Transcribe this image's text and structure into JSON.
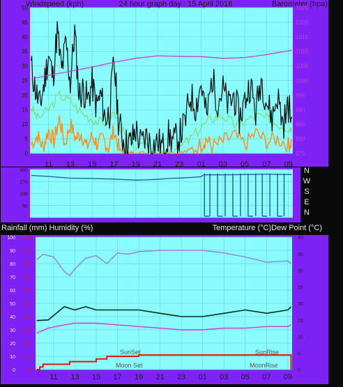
{
  "colors": {
    "panel": "#7f22f5",
    "plot": "#8afcfc",
    "grid": "#6fd6d6",
    "dark_text": "#1a1a1a",
    "wind_gust": "#0c0c0c",
    "wind_avg": "#7ddc78",
    "wind_orange": "#ff8c1a",
    "barometer": "#c940d8",
    "direction": "#1c5aa0",
    "humidity": "#9a7be6",
    "temperature": "#0c2a1a",
    "dewpoint": "#d836d0",
    "rain": "#e81010",
    "rain_axis_text": "#d42020"
  },
  "chart_data": [
    {
      "id": "wind_baro",
      "type": "line",
      "title": "24 hour graph day : 15 April 2018",
      "ylabel_left": "Windspeed (kph)",
      "ylabel_right": "Barometer (hpa)",
      "ylim_left": [
        0,
        50
      ],
      "ylim_right": [
        975,
        1025
      ],
      "y_ticks_left": [
        "0",
        "5",
        "10",
        "15",
        "20",
        "25",
        "30",
        "35",
        "40",
        "45",
        "50"
      ],
      "y_ticks_right": [
        "975",
        "980",
        "985",
        "990",
        "995",
        "1000",
        "1005",
        "1010",
        "1015",
        "1020",
        "1025"
      ],
      "x_ticks": [
        "11",
        "13",
        "15",
        "17",
        "19",
        "21",
        "23",
        "01",
        "03",
        "05",
        "07",
        "09"
      ],
      "x_hours": [
        0,
        2,
        4,
        6,
        8,
        10,
        12,
        14,
        16,
        18,
        20,
        22
      ],
      "x_range": [
        -1.7,
        22.4
      ],
      "series": [
        {
          "key": "gust",
          "x": [
            -1.6,
            -1.2,
            -0.8,
            -0.4,
            0,
            0.4,
            0.8,
            1.2,
            1.6,
            2,
            2.4,
            2.8,
            3.2,
            3.6,
            4,
            4.4,
            4.8,
            5.2,
            5.6,
            6,
            6.4,
            6.8,
            7.2,
            7.6,
            8,
            8.5,
            9,
            9.5,
            10,
            10.5,
            11,
            11.5,
            12,
            12.5,
            13,
            13.5,
            14,
            14.5,
            15,
            15.5,
            16,
            16.5,
            17,
            17.5,
            18,
            18.5,
            19,
            19.5,
            20,
            20.5,
            21,
            21.5,
            22,
            22.3
          ],
          "y": [
            30,
            22,
            16,
            24,
            34,
            26,
            42,
            28,
            38,
            24,
            42,
            20,
            22,
            18,
            24,
            16,
            20,
            12,
            14,
            32,
            12,
            5,
            3,
            4,
            8,
            3,
            6,
            2,
            4,
            2,
            6,
            4,
            6,
            10,
            20,
            16,
            24,
            12,
            26,
            18,
            22,
            16,
            20,
            12,
            18,
            24,
            14,
            26,
            18,
            12,
            20,
            10,
            16,
            12
          ]
        },
        {
          "key": "avg",
          "x": [
            -1.6,
            -1,
            0,
            1,
            2,
            3,
            4,
            5,
            6,
            7,
            8,
            10,
            12,
            13,
            14,
            15,
            16,
            17,
            18,
            19,
            20,
            21,
            22,
            22.3
          ],
          "y": [
            16,
            12,
            15,
            20,
            18,
            14,
            12,
            10,
            14,
            6,
            2,
            1,
            2,
            5,
            9,
            12,
            13,
            10,
            11,
            13,
            12,
            10,
            9,
            9
          ]
        },
        {
          "key": "orange",
          "x": [
            -1.6,
            -1,
            -0.5,
            0,
            0.5,
            1,
            1.5,
            2,
            2.5,
            3,
            3.5,
            4,
            4.5,
            5,
            5.5,
            6,
            6.5,
            7,
            7.5,
            8,
            9,
            10,
            11,
            12,
            13,
            14,
            14.5,
            15,
            16,
            17,
            18,
            19,
            20,
            21,
            22,
            22.3
          ],
          "y": [
            3,
            6,
            2,
            8,
            4,
            12,
            3,
            10,
            5,
            7,
            2,
            6,
            3,
            5,
            2,
            8,
            1,
            0,
            0,
            0,
            0,
            0,
            0,
            0,
            1,
            3,
            5,
            2,
            4,
            6,
            3,
            7,
            4,
            5,
            3,
            4
          ]
        },
        {
          "key": "barometer",
          "x": [
            -1.6,
            0,
            2,
            4,
            6,
            8,
            10,
            12,
            14,
            16,
            18,
            20,
            22,
            22.3
          ],
          "y": [
            1000.5,
            1001.8,
            1003.2,
            1004.6,
            1006.3,
            1007.6,
            1008.5,
            1008.3,
            1008.2,
            1007.6,
            1007.9,
            1008.9,
            1010.2,
            1010.5
          ]
        }
      ]
    },
    {
      "id": "direction",
      "type": "line",
      "ylabel_right": [
        "N",
        "W",
        "S",
        "E",
        "N"
      ],
      "y_ticks_left": [
        "360",
        "270",
        "180",
        "90",
        ""
      ],
      "ylim": [
        0,
        360
      ],
      "series": [
        {
          "key": "direction",
          "x": [
            -1.6,
            0,
            2,
            4,
            6,
            7,
            8,
            9,
            10,
            11,
            12,
            13,
            14,
            14.2,
            16,
            18,
            20,
            22,
            22.3
          ],
          "y": [
            315,
            308,
            295,
            292,
            288,
            284,
            280,
            282,
            286,
            292,
            296,
            300,
            305,
            320,
            320,
            322,
            324,
            322,
            322
          ]
        }
      ]
    },
    {
      "id": "humidity_temp",
      "type": "line",
      "ylabel_left": "Rainfall (mm)  Humidity (%)",
      "ylabel_right": "Temperature (°C)Dew Point (°C)",
      "y_ticks_humidity": [
        "0",
        "10",
        "20",
        "30",
        "40",
        "50",
        "60",
        "70",
        "80",
        "90",
        "100"
      ],
      "y_ticks_rain": [
        "0.0",
        "5.0",
        "10.0",
        "15.0",
        "20.0",
        "25.0",
        "30.0",
        "35.0",
        "40.0",
        "45.0",
        "50.0"
      ],
      "y_ticks_temp": [
        "0",
        "5",
        "10",
        "15",
        "20",
        "25",
        "30",
        "35",
        "40"
      ],
      "ylim_left": [
        0,
        100
      ],
      "ylim_right": [
        0,
        40
      ],
      "x_ticks": [
        "11",
        "13",
        "15",
        "17",
        "19",
        "21",
        "23",
        "01",
        "03",
        "05",
        "07",
        "09"
      ],
      "annotations": [
        "SunSet",
        "Moon Set",
        "SunRise",
        "MoonRise"
      ],
      "series": [
        {
          "key": "humidity",
          "x": [
            -1.6,
            -1,
            0,
            1,
            1.5,
            2,
            3,
            4,
            5,
            6,
            7,
            8,
            10,
            12,
            14,
            16,
            18,
            20,
            22,
            22.3
          ],
          "y": [
            83,
            87,
            85,
            74,
            71,
            76,
            84,
            86,
            80,
            88,
            87,
            89,
            90,
            90,
            90,
            88,
            85,
            81,
            82,
            80
          ]
        },
        {
          "key": "temperature",
          "x": [
            -1.6,
            -0.5,
            1,
            2,
            3,
            4,
            6,
            8,
            10,
            12,
            14,
            16,
            18,
            20,
            22,
            22.3
          ],
          "y": [
            14.8,
            15,
            19,
            18,
            19,
            18,
            18,
            18,
            17,
            16,
            16,
            17,
            18,
            17,
            18,
            19
          ]
        },
        {
          "key": "dewpoint",
          "x": [
            -1.6,
            -0.5,
            1,
            2,
            3,
            4,
            6,
            8,
            10,
            12,
            14,
            16,
            18,
            20,
            22,
            22.3
          ],
          "y": [
            11,
            12.5,
            13.5,
            14,
            14,
            14,
            13.5,
            13,
            12.5,
            12,
            12,
            12.5,
            12.5,
            13,
            13,
            13.5
          ]
        },
        {
          "key": "rain",
          "x": [
            -1.6,
            -1.3,
            -1,
            0,
            1.5,
            3,
            4,
            5,
            6,
            8,
            10,
            12,
            14,
            16,
            18,
            20,
            22,
            22.3,
            22.3
          ],
          "y": [
            0,
            1,
            2,
            2,
            3,
            3,
            4,
            5,
            5,
            5.5,
            5.5,
            5.5,
            5.5,
            5.5,
            5.5,
            5.5,
            5.5,
            5.5,
            0
          ]
        }
      ]
    }
  ]
}
